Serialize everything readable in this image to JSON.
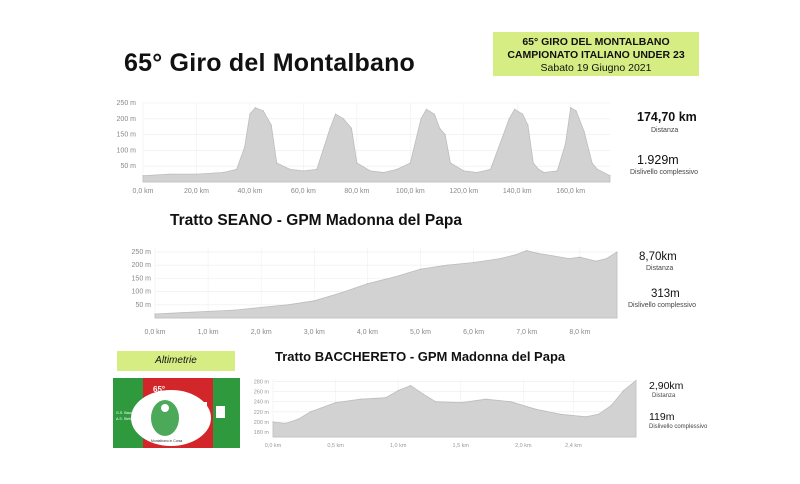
{
  "header": {
    "title": "65° Giro del Montalbano",
    "info_line1": "65° GIRO DEL MONTALBANO",
    "info_line2": "CAMPIONATO ITALIANO UNDER 23",
    "info_line3": "Sabato 19 Giugno 2021"
  },
  "stats": {
    "total_distance": "174,70 km",
    "total_distance_label": "Distanza",
    "total_elevation": "1.929m",
    "total_elevation_label": "Dislivello complessivo",
    "seano_distance": "8,70km",
    "seano_distance_label": "Distanza",
    "seano_elevation": "313m",
    "seano_elevation_label": "Dislivello complessivo",
    "bacc_distance": "2,90km",
    "bacc_distance_label": "Distanza",
    "bacc_elevation": "119m",
    "bacc_elevation_label": "Dislivello complessivo"
  },
  "sections": {
    "seano_title": "Tratto SEANO - GPM Madonna del Papa",
    "baccereto_title": "Tratto BACCHERETO - GPM Madonna del Papa",
    "altimetrie_label": "Altimetrie"
  },
  "logo": {
    "text_top": "65°",
    "text_left1": "G.S. Bacchereto",
    "text_left2": "A.S. Stefano Ruoco",
    "text_bottom": "Montalbano in Corsa"
  },
  "colors": {
    "profile_fill": "#d2d2d2",
    "profile_stroke": "#bdbdbd",
    "box_green": "#d6ed84",
    "logo_red": "#d3262b",
    "logo_green": "#2e9a3d"
  },
  "chart_data": [
    {
      "type": "area",
      "title": "",
      "xlabel": "",
      "ylabel": "",
      "x_ticks": [
        "0,0 km",
        "20,0 km",
        "40,0 km",
        "60,0 km",
        "80,0 km",
        "100,0 km",
        "120,0 km",
        "140,0 km",
        "160,0 km"
      ],
      "y_ticks": [
        "250 m",
        "200 m",
        "150 m",
        "100 m",
        "50 m"
      ],
      "xlim": [
        0,
        174.7
      ],
      "ylim": [
        0,
        250
      ],
      "x": [
        0,
        10,
        20,
        30,
        35,
        38,
        40,
        42,
        45,
        48,
        50,
        55,
        60,
        65,
        70,
        72,
        75,
        78,
        80,
        85,
        90,
        95,
        100,
        104,
        106,
        109,
        111,
        113,
        115,
        120,
        125,
        130,
        137,
        139,
        142,
        144,
        146,
        148,
        150,
        155,
        158,
        160,
        162,
        165,
        168,
        170,
        174.7
      ],
      "y": [
        20,
        25,
        25,
        30,
        40,
        110,
        215,
        235,
        225,
        180,
        60,
        40,
        35,
        40,
        170,
        215,
        200,
        170,
        60,
        35,
        30,
        40,
        60,
        200,
        230,
        215,
        170,
        150,
        60,
        35,
        30,
        40,
        200,
        230,
        215,
        180,
        60,
        40,
        30,
        35,
        120,
        235,
        225,
        160,
        60,
        40,
        20
      ]
    },
    {
      "type": "area",
      "title": "",
      "xlabel": "",
      "ylabel": "",
      "x_ticks": [
        "0,0 km",
        "1,0 km",
        "2,0 km",
        "3,0 km",
        "4,0 km",
        "5,0 km",
        "6,0 km",
        "7,0 km",
        "8,0 km"
      ],
      "y_ticks": [
        "250 m",
        "200 m",
        "150 m",
        "100 m",
        "50 m"
      ],
      "xlim": [
        0,
        8.7
      ],
      "ylim": [
        0,
        265
      ],
      "x": [
        0,
        0.5,
        1.0,
        1.5,
        2.0,
        2.5,
        3.0,
        3.5,
        4.0,
        4.5,
        5.0,
        5.5,
        6.0,
        6.5,
        6.8,
        7.0,
        7.2,
        7.5,
        7.8,
        8.0,
        8.3,
        8.5,
        8.7
      ],
      "y": [
        15,
        20,
        25,
        30,
        40,
        50,
        65,
        95,
        130,
        155,
        185,
        200,
        210,
        225,
        240,
        255,
        245,
        235,
        225,
        230,
        215,
        225,
        250
      ]
    },
    {
      "type": "area",
      "title": "",
      "xlabel": "",
      "ylabel": "",
      "x_ticks": [
        "0,0 km",
        "0,5 km",
        "1,0 km",
        "1,5 km",
        "2,0 km",
        "2,4 km"
      ],
      "y_ticks": [
        "280 m",
        "260 m",
        "240 m",
        "220 m",
        "200 m",
        "180 m"
      ],
      "xlim": [
        0,
        2.9
      ],
      "ylim": [
        170,
        285
      ],
      "x": [
        0,
        0.1,
        0.2,
        0.3,
        0.5,
        0.7,
        0.9,
        1.0,
        1.1,
        1.2,
        1.3,
        1.5,
        1.7,
        1.9,
        2.1,
        2.3,
        2.5,
        2.6,
        2.7,
        2.8,
        2.9
      ],
      "y": [
        200,
        197,
        205,
        220,
        238,
        245,
        248,
        262,
        272,
        255,
        240,
        238,
        245,
        240,
        225,
        215,
        210,
        215,
        232,
        262,
        282
      ]
    }
  ]
}
